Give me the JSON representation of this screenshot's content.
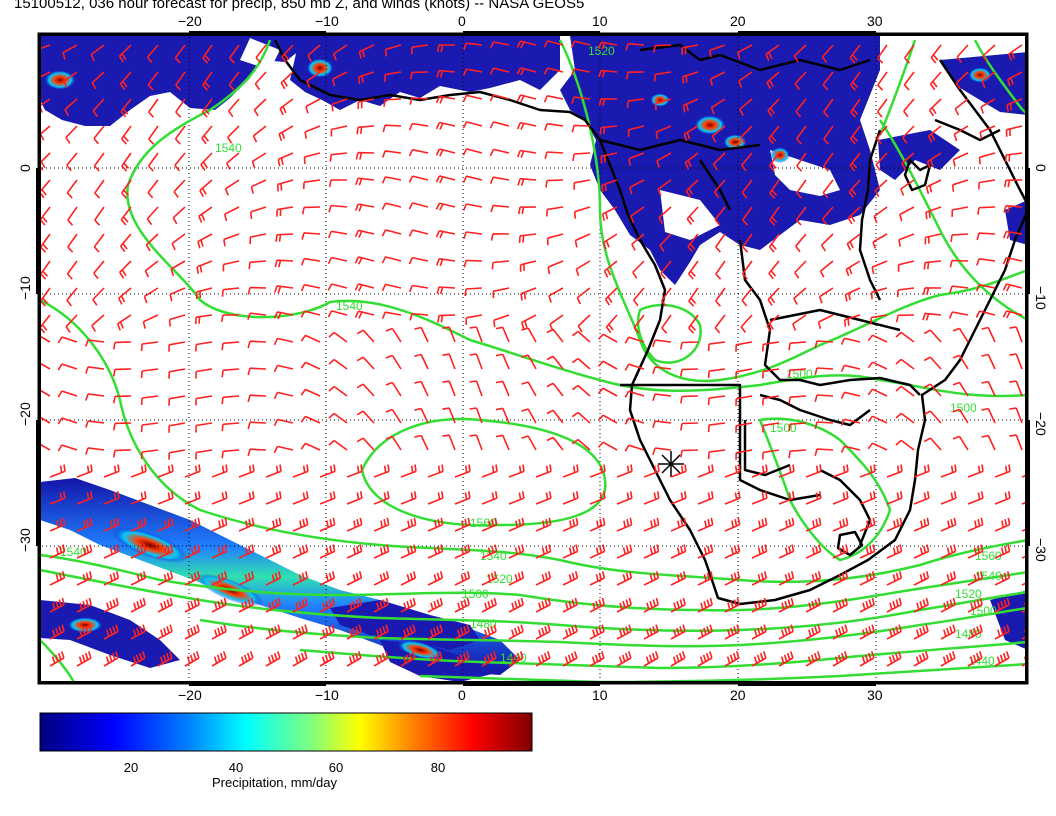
{
  "title": "15100512, 036 hour forecast for precip, 850 mb Z, and winds (knots) -- NASA GEOS5",
  "map": {
    "lon_ticks": [
      "−20",
      "−10",
      "0",
      "10",
      "20",
      "30"
    ],
    "lat_ticks": [
      "0",
      "−10",
      "−20",
      "−30"
    ],
    "lon_range": [
      -30,
      42
    ],
    "lat_range": [
      12,
      -40
    ],
    "contour_labels": [
      "1520",
      "1540",
      "1540",
      "1560",
      "1540",
      "1520",
      "1500",
      "1480",
      "1440",
      "1560",
      "1540",
      "1520",
      "1500",
      "1480",
      "1440",
      "1500",
      "1500",
      "1500",
      "1540"
    ],
    "colors": {
      "coast": "#000000",
      "contour": "#33dd33",
      "wind_barb": "#ff2020",
      "grid": "#000000"
    }
  },
  "colorbar": {
    "ticks": [
      "20",
      "40",
      "60",
      "80"
    ],
    "label": "Precipitation, mm/day",
    "range": [
      0,
      100
    ],
    "colors": [
      "#00007f",
      "#0000ff",
      "#007fff",
      "#00ffff",
      "#7fff7f",
      "#ffff00",
      "#ff7f00",
      "#ff0000",
      "#7f0000"
    ]
  }
}
